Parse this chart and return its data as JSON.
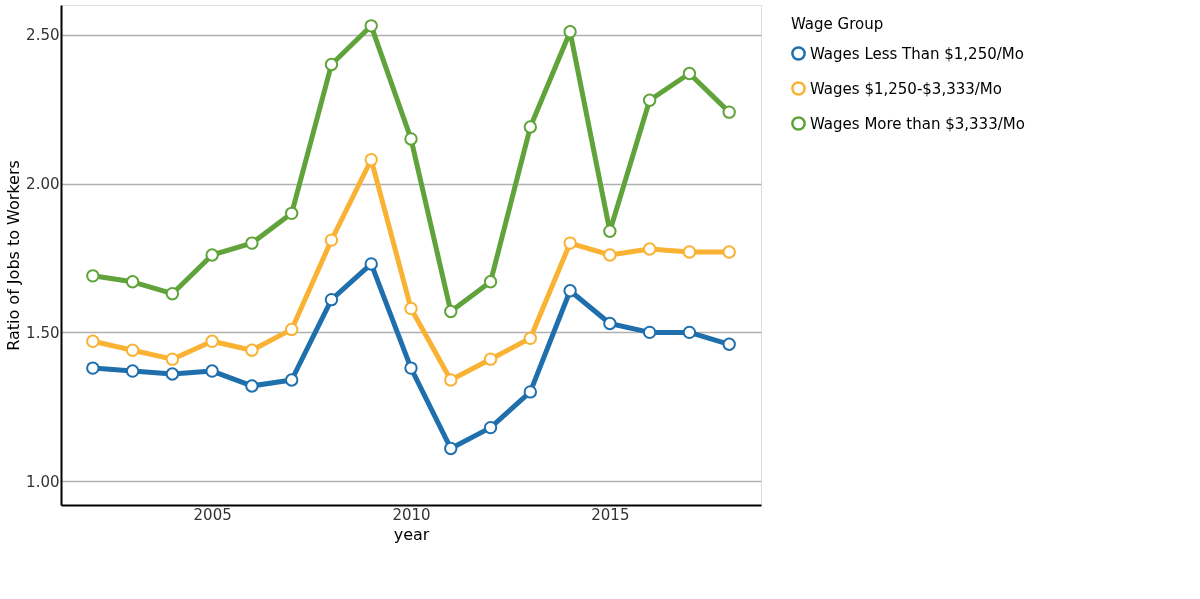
{
  "chart_data": {
    "type": "line",
    "xlabel": "year",
    "ylabel": "Ratio of Jobs to Workers",
    "legend_title": "Wage Group",
    "x": [
      2002,
      2003,
      2004,
      2005,
      2006,
      2007,
      2008,
      2009,
      2010,
      2011,
      2012,
      2013,
      2014,
      2015,
      2016,
      2017,
      2018
    ],
    "series": [
      {
        "name": "Wages Less Than $1,250/Mo",
        "color": "#1f6fad",
        "values": [
          1.38,
          1.37,
          1.36,
          1.37,
          1.32,
          1.34,
          1.61,
          1.73,
          1.38,
          1.11,
          1.18,
          1.3,
          1.64,
          1.53,
          1.5,
          1.5,
          1.46
        ]
      },
      {
        "name": "Wages $1,250-$3,333/Mo",
        "color": "#f9b233",
        "values": [
          1.47,
          1.44,
          1.41,
          1.47,
          1.44,
          1.51,
          1.81,
          2.08,
          1.58,
          1.34,
          1.41,
          1.48,
          1.8,
          1.76,
          1.78,
          1.77,
          1.77
        ]
      },
      {
        "name": "Wages More than $3,333/Mo",
        "color": "#5fa33a",
        "values": [
          1.69,
          1.67,
          1.63,
          1.76,
          1.8,
          1.9,
          2.4,
          2.53,
          2.15,
          1.57,
          1.67,
          2.19,
          2.51,
          1.84,
          2.28,
          2.37,
          2.24
        ]
      }
    ],
    "xlim": [
      2001.2,
      2018.8
    ],
    "xticks": [
      2005,
      2010,
      2015
    ],
    "ylim": [
      0.92,
      2.6
    ],
    "yticks": [
      {
        "value": 1.0,
        "label": "1.00"
      },
      {
        "value": 1.5,
        "label": "1.50"
      },
      {
        "value": 2.0,
        "label": "2.00"
      },
      {
        "value": 2.5,
        "label": "2.50"
      }
    ],
    "grid": "y",
    "legend": "right",
    "marker": "circle",
    "line_style": "solid"
  }
}
